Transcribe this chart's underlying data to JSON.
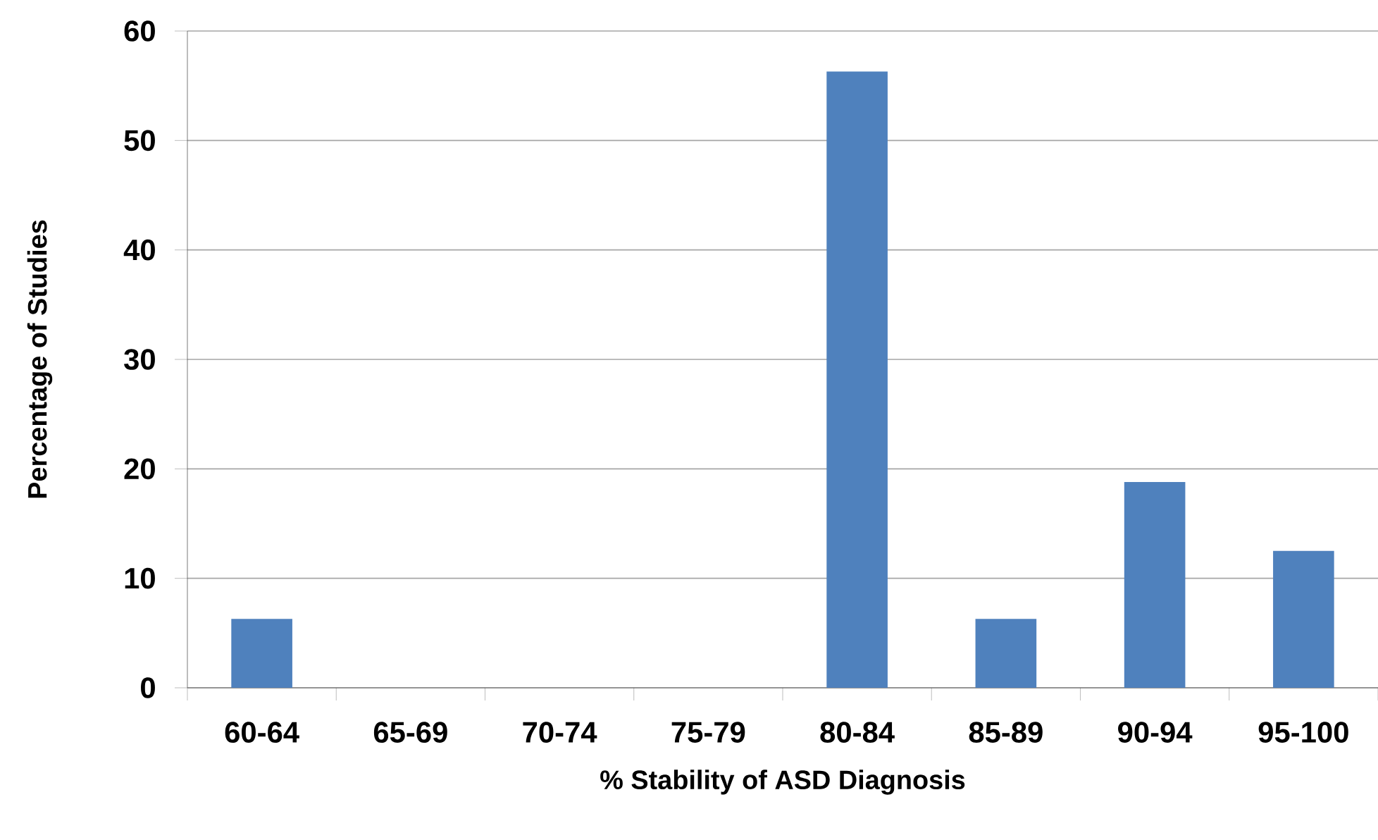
{
  "chart_data": {
    "type": "bar",
    "xlabel": "% Stability of ASD Diagnosis",
    "ylabel": "Percentage of Studies",
    "categories": [
      "60-64",
      "65-69",
      "70-74",
      "75-79",
      "80-84",
      "85-89",
      "90-94",
      "95-100"
    ],
    "values": [
      6.3,
      0,
      0,
      0,
      56.3,
      6.3,
      18.8,
      12.5
    ],
    "color": "#4f81bd",
    "ylim": [
      0,
      60
    ],
    "yticks": [
      0,
      10,
      20,
      30,
      40,
      50,
      60
    ],
    "grid": "y"
  }
}
